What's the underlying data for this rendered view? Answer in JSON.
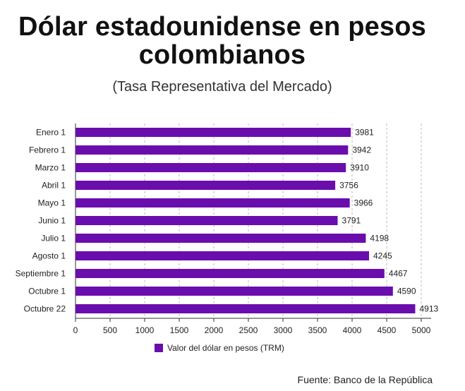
{
  "title_line1": "Dólar estadounidense en pesos",
  "title_line2": "colombianos",
  "subtitle": "(Tasa Representativa del Mercado)",
  "legend_label": "Valor del dólar en pesos (TRM)",
  "source": "Fuente: Banco de la República",
  "bar_color": "#6a0dad",
  "chart_data": {
    "type": "bar",
    "orientation": "horizontal",
    "categories": [
      "Enero 1",
      "Febrero 1",
      "Marzo 1",
      "Abril 1",
      "Mayo 1",
      "Junio 1",
      "Julio 1",
      "Agosto 1",
      "Septiembre 1",
      "Octubre 1",
      "Octubre 22"
    ],
    "series": [
      {
        "name": "Valor del dólar en pesos (TRM)",
        "values": [
          3981,
          3942,
          3910,
          3756,
          3966,
          3791,
          4198,
          4245,
          4467,
          4590,
          4913
        ]
      }
    ],
    "xlim": [
      0,
      5000
    ],
    "xticks": [
      0,
      500,
      1000,
      1500,
      2000,
      2500,
      3000,
      3500,
      4000,
      4500,
      5000
    ],
    "grid": "vertical dashed",
    "legend_position": "bottom"
  }
}
